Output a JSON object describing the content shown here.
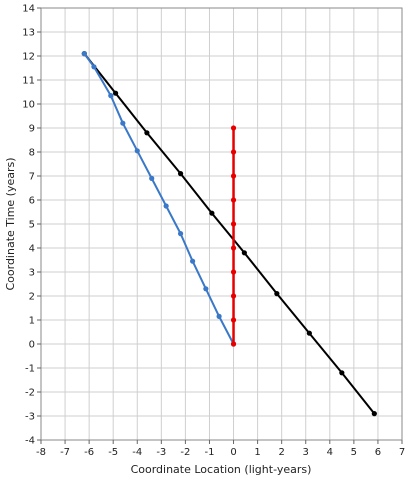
{
  "chart_data": {
    "type": "line",
    "xlabel": "Coordinate Location (light-years)",
    "ylabel": "Coordinate Time (years)",
    "xlim": [
      -8,
      7
    ],
    "ylim": [
      -4,
      14
    ],
    "x_ticks": [
      -8,
      -7,
      -6,
      -5,
      -4,
      -3,
      -2,
      -1,
      0,
      1,
      2,
      3,
      4,
      5,
      6,
      7
    ],
    "y_ticks": [
      -4,
      -3,
      -2,
      -1,
      0,
      1,
      2,
      3,
      4,
      5,
      6,
      7,
      8,
      9,
      10,
      11,
      12,
      13,
      14
    ],
    "grid": true,
    "legend": "none",
    "series": [
      {
        "color": "#000000",
        "points": [
          [
            -6.2,
            12.1
          ],
          [
            -4.9,
            10.45
          ],
          [
            -3.6,
            8.8
          ],
          [
            -2.2,
            7.1
          ],
          [
            -0.9,
            5.45
          ],
          [
            0.45,
            3.8
          ],
          [
            1.8,
            2.1
          ],
          [
            3.15,
            0.45
          ],
          [
            4.5,
            -1.2
          ],
          [
            5.85,
            -2.9
          ]
        ]
      },
      {
        "color": "#3a78c8",
        "points": [
          [
            -6.2,
            12.1
          ],
          [
            -5.8,
            11.55
          ],
          [
            -5.1,
            10.35
          ],
          [
            -4.6,
            9.2
          ],
          [
            -4.0,
            8.05
          ],
          [
            -3.4,
            6.9
          ],
          [
            -2.8,
            5.75
          ],
          [
            -2.2,
            4.6
          ],
          [
            -1.7,
            3.45
          ],
          [
            -1.15,
            2.3
          ],
          [
            -0.6,
            1.15
          ],
          [
            0.0,
            0.0
          ]
        ]
      },
      {
        "color": "#e60000",
        "points": [
          [
            0,
            0
          ],
          [
            0,
            1
          ],
          [
            0,
            2
          ],
          [
            0,
            3
          ],
          [
            0,
            4
          ],
          [
            0,
            5
          ],
          [
            0,
            6
          ],
          [
            0,
            7
          ],
          [
            0,
            8
          ],
          [
            0,
            9
          ]
        ]
      }
    ]
  }
}
